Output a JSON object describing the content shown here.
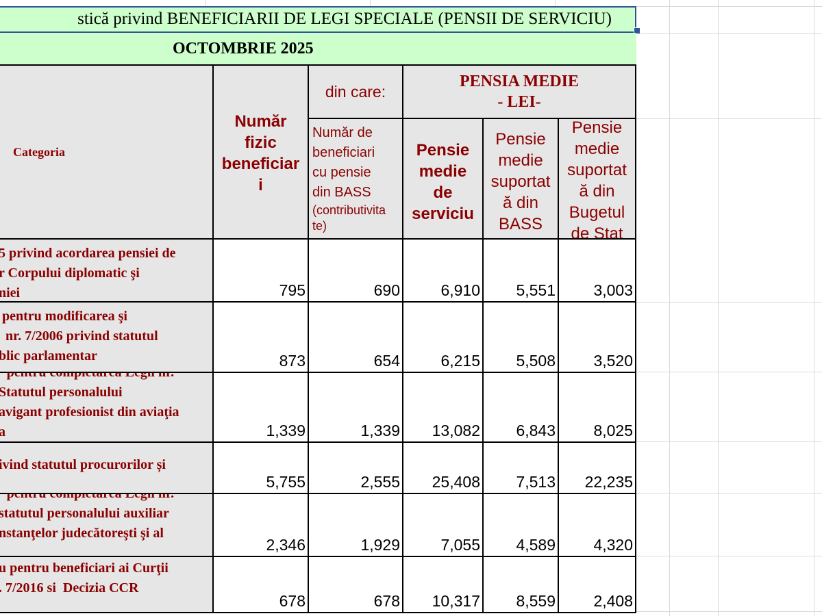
{
  "sheet": {
    "title": "stică privind BENEFICIARII DE LEGI SPECIALE (PENSII DE SERVICIU)",
    "period": "OCTOMBRIE 2025",
    "selection_color": "#2f5597",
    "title_fill": "#ccffcc",
    "header_text_color": "#8b0000",
    "header_fill": "#e6e6e6"
  },
  "headers": {
    "category": "Categoria",
    "beneficiaries": "Număr\nfizic\nbeneficiar\ni",
    "of_which": "din care:",
    "bass_beneficiaries": "Număr de\nbeneficiari\ncu pensie\ndin BASS",
    "bass_beneficiaries_note": "(contributivita\nte)",
    "avg_pension_group": "PENSIA MEDIE\n- LEI-",
    "avg_service": "Pensie\nmedie\nde\nserviciu",
    "avg_bass": "Pensie\nmedie\nsuportat\nă din\nBASS",
    "avg_state": "Pensie\nmedie\nsuportat\nă din\nBugetul\nde Stat"
  },
  "rows": [
    {
      "top_clipped": "",
      "lines": "5 privind acordarea pensiei de\nr Corpului diplomatic şi\nniei",
      "beneficiaries": "795",
      "bass": "690",
      "avg_service": "6,910",
      "avg_bass": "5,551",
      "avg_state": "3,003"
    },
    {
      "top_clipped": "",
      "lines": " pentru modificarea şi\n  nr. 7/2006 privind statutul\nblic parlamentar",
      "beneficiaries": "873",
      "bass": "654",
      "avg_service": "6,215",
      "avg_bass": "5,508",
      "avg_state": "3,520"
    },
    {
      "top_clipped": "· pentru completarea Legii nr.",
      "lines": "Statutul personalului\navigant profesionist din aviaţia\na",
      "beneficiaries": "1,339",
      "bass": "1,339",
      "avg_service": "13,082",
      "avg_bass": "6,843",
      "avg_state": "8,025"
    },
    {
      "top_clipped": "",
      "lines": "ivind statutul procurorilor și",
      "beneficiaries": "5,755",
      "bass": "2,555",
      "avg_service": "25,408",
      "avg_bass": "7,513",
      "avg_state": "22,235"
    },
    {
      "top_clipped": "· pentru completarea Legii nr.",
      "lines": "statutul personalului auxiliar\nnstanţelor judecătoreşti şi al",
      "beneficiaries": "2,346",
      "bass": "1,929",
      "avg_service": "7,055",
      "avg_bass": "4,589",
      "avg_state": "4,320"
    },
    {
      "top_clipped": "",
      "lines": "u pentru beneficiari ai Curţii\n. 7/2016 si  Decizia CCR",
      "beneficiaries": "678",
      "bass": "678",
      "avg_service": "10,317",
      "avg_bass": "8,559",
      "avg_state": "2,408"
    }
  ]
}
